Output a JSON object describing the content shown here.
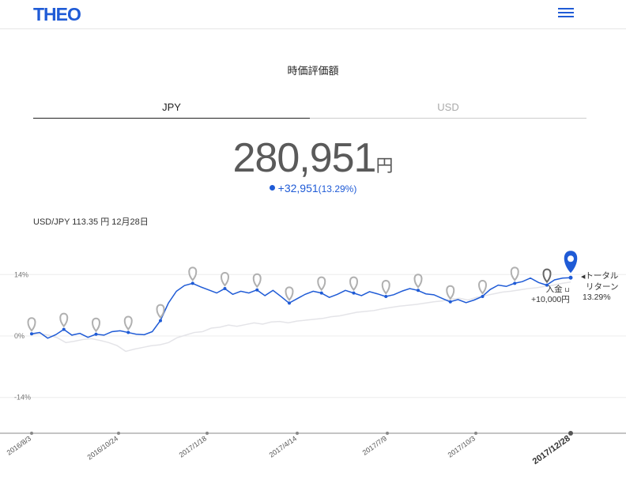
{
  "header": {
    "logo": "THEO",
    "menu_icon": "hamburger-icon"
  },
  "page_title": "時価評価額",
  "tabs": [
    {
      "label": "JPY",
      "active": true
    },
    {
      "label": "USD",
      "active": false
    }
  ],
  "valuation": {
    "amount": "280,951",
    "unit": "円",
    "change": "+32,951",
    "change_pct": "(13.29%)"
  },
  "fx_rate": "USD/JPY 113.35 円 12月28日",
  "annotations": {
    "total_return_line1": "トータル",
    "total_return_line2": "リターン",
    "total_return_value": "13.29%",
    "deposit_label": "入金",
    "deposit_amount": "+10,000円"
  },
  "colors": {
    "brand": "#1f5bd6",
    "benchmark": "#e4e4e8",
    "marker": "#b0b0b0"
  },
  "chart_data": {
    "type": "line",
    "ylabel": "",
    "yticks": [
      "14%",
      "0%",
      "-14%"
    ],
    "ylim": [
      -20,
      17
    ],
    "xticks": [
      "2016/8/3",
      "2016/10/24",
      "2017/1/18",
      "2017/4/14",
      "2017/7/9",
      "2017/10/3",
      "2017/12/28"
    ],
    "series": [
      {
        "values": [
          0.5,
          0.8,
          -0.5,
          0.3,
          1.5,
          0.2,
          0.6,
          -0.3,
          0.4,
          0.2,
          1.0,
          1.2,
          0.8,
          0.4,
          0.3,
          1.0,
          3.5,
          7.5,
          10.2,
          11.5,
          12.0,
          11.2,
          10.5,
          9.8,
          10.8,
          9.5,
          10.2,
          9.8,
          10.5,
          9.2,
          10.4,
          9.0,
          7.5,
          8.5,
          9.5,
          10.2,
          9.8,
          8.8,
          9.5,
          10.4,
          9.8,
          9.2,
          10.1,
          9.6,
          9.0,
          9.4,
          10.2,
          10.8,
          10.4,
          9.6,
          9.4,
          8.6,
          7.8,
          8.3,
          7.6,
          8.2,
          9.0,
          10.6,
          11.6,
          11.3,
          12.0,
          12.4,
          13.2,
          12.2,
          11.6,
          12.8,
          13.2,
          13.29
        ]
      },
      {
        "values": [
          0.3,
          0.5,
          0.2,
          -0.4,
          -1.5,
          -1.2,
          -0.8,
          -0.6,
          -1.0,
          -1.5,
          -2.2,
          -3.5,
          -3.0,
          -2.6,
          -2.2,
          -2.0,
          -1.5,
          -0.4,
          0.2,
          0.8,
          1.0,
          1.8,
          2.0,
          2.5,
          2.2,
          2.6,
          3.0,
          2.7,
          3.2,
          3.3,
          3.0,
          3.4,
          3.6,
          3.8,
          4.0,
          4.4,
          4.6,
          5.0,
          5.4,
          5.6,
          5.8,
          6.2,
          6.5,
          6.8,
          7.0,
          7.2,
          7.5,
          7.8,
          8.0,
          8.4,
          8.6,
          8.2,
          8.8,
          9.2,
          9.6,
          10.0,
          10.2,
          10.5,
          10.8,
          11.0,
          11.3,
          11.6,
          12.0,
          12.3
        ]
      }
    ],
    "deposit_markers": [
      0.5,
      2.2,
      3.3,
      3.5,
      3.6,
      3.6,
      3.1,
      3.8,
      4.2,
      4.7,
      5.5,
      4.8,
      4.6,
      4.8,
      5.7,
      5.0,
      6.1
    ],
    "legend": "none",
    "grid": true
  }
}
